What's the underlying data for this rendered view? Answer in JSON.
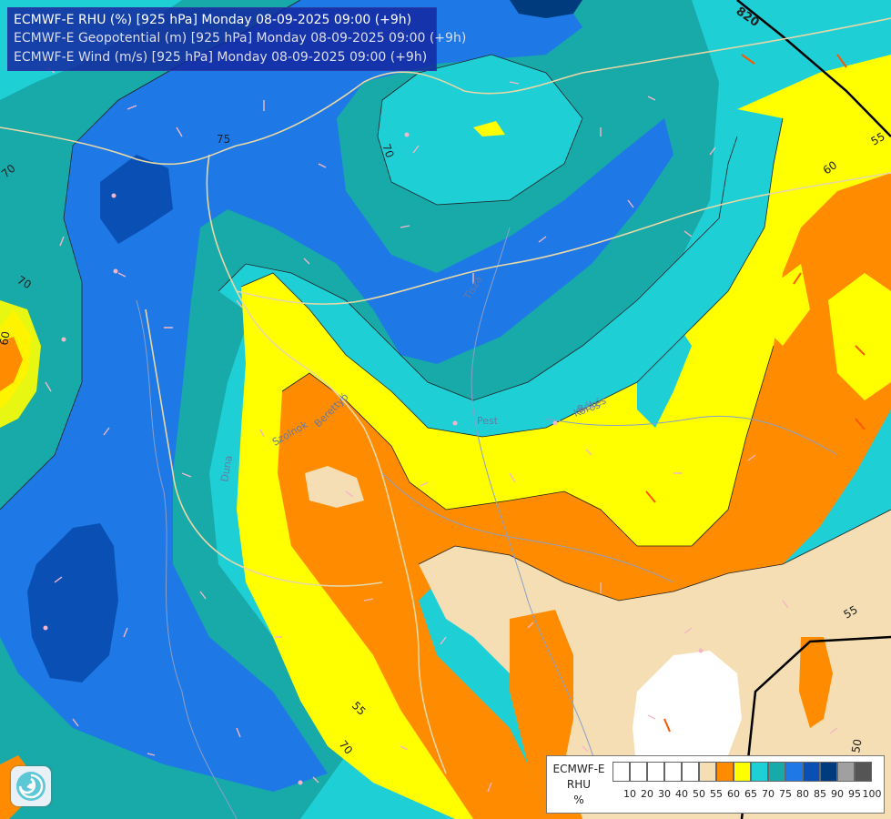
{
  "title": {
    "line1": "ECMWF-E RHU (%) [925 hPa] Monday 08-09-2025 09:00 (+9h)",
    "line2": "ECMWF-E Geopotential (m) [925 hPa] Monday 08-09-2025 09:00 (+9h)",
    "line3": "ECMWF-E Wind (m/s) [925 hPa] Monday 08-09-2025 09:00 (+9h)"
  },
  "legend": {
    "model": "ECMWF-E",
    "variable": "RHU",
    "unit": "%",
    "ticks": [
      "10",
      "20",
      "30",
      "40",
      "50",
      "55",
      "60",
      "65",
      "70",
      "75",
      "80",
      "85",
      "90",
      "95",
      "100"
    ],
    "colors": [
      "#ffffff",
      "#ffffff",
      "#ffffff",
      "#ffffff",
      "#ffffff",
      "#f5deb3",
      "#ff8c00",
      "#ffff00",
      "#1ecfd6",
      "#18a9a9",
      "#1e78e6",
      "#0a50b4",
      "#003c7d",
      "#a0a0a0",
      "#555555"
    ]
  },
  "map": {
    "contour_labels": {
      "rhu": [
        "75",
        "70",
        "70",
        "70",
        "60",
        "60",
        "55",
        "70",
        "55",
        "55",
        "50"
      ],
      "geopotential": [
        "820"
      ]
    },
    "place_labels": [
      "Tisza",
      "Körös",
      "Berettyó",
      "Szolnok",
      "Békés",
      "Pest",
      "Duna"
    ],
    "colors": {
      "wind_barb": "#f4b6c8",
      "strong_wind_barb": "#ff5500",
      "rivers": "#8a9fc9",
      "borders": "#e8d8a8",
      "geopotential_contour": "#000000"
    }
  },
  "logo": {
    "icon": "ecmwf-swirl-icon"
  }
}
